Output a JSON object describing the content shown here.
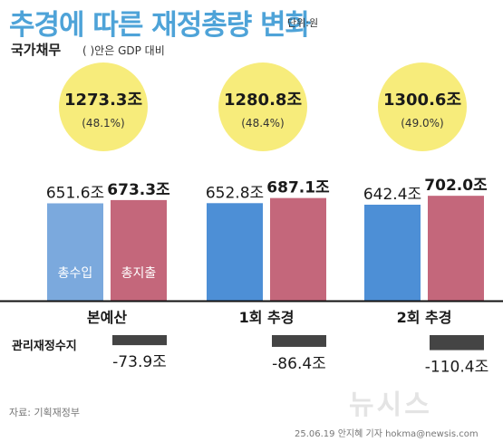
{
  "header": {
    "title": "추경에 따른 재정총량 변화",
    "unit": "단위:원",
    "subtitle": "국가채무",
    "subtitle_note": "( )안은 GDP 대비"
  },
  "footer": {
    "source": "자료: 기획재정부",
    "credit": "25.06.19 안지혜 기자 hokma@newsis.com",
    "logo": "뉴시스"
  },
  "chart_data": {
    "type": "bar",
    "categories": [
      "본예산",
      "1회 추경",
      "2회 추경"
    ],
    "series": [
      {
        "name": "총수입",
        "values": [
          651.6,
          652.8,
          642.4
        ],
        "labels": [
          "651.6조",
          "652.8조",
          "642.4조"
        ],
        "colors": [
          "#7ba9dd",
          "#4d8fd6",
          "#4d8fd6"
        ]
      },
      {
        "name": "총지출",
        "values": [
          673.3,
          687.1,
          702.0
        ],
        "labels": [
          "673.3조",
          "687.1조",
          "702.0조"
        ],
        "colors": [
          "#c4677b",
          "#c4677b",
          "#c4677b"
        ]
      }
    ],
    "national_debt": {
      "values": [
        1273.3,
        1280.8,
        1300.6
      ],
      "labels": [
        "1273.3조",
        "1280.8조",
        "1300.6조"
      ],
      "gdp_ratio_labels": [
        "(48.1%)",
        "(48.4%)",
        "(49.0%)"
      ],
      "color": "#f7ec7b"
    },
    "balance": {
      "label": "관리재정수지",
      "values": [
        -73.9,
        -86.4,
        -110.4
      ],
      "labels": [
        "-73.9조",
        "-86.4조",
        "-110.4조"
      ],
      "color": "#444444"
    },
    "colors": {
      "title": "#4ea3d8",
      "axis": "#111111"
    }
  }
}
